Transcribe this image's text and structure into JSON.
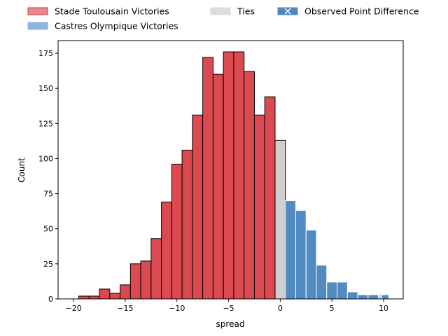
{
  "chart_data": {
    "type": "bar",
    "xlabel": "spread",
    "ylabel": "Count",
    "xlim": [
      -21.5,
      11.9
    ],
    "ylim": [
      0,
      184
    ],
    "xticks": [
      -20,
      -15,
      -10,
      -5,
      0,
      5,
      10
    ],
    "xtick_labels": [
      "−20",
      "−15",
      "−10",
      "−5",
      "0",
      "5",
      "10"
    ],
    "yticks": [
      0,
      25,
      50,
      75,
      100,
      125,
      150,
      175
    ],
    "ytick_labels": [
      "0",
      "25",
      "50",
      "75",
      "100",
      "125",
      "150",
      "175"
    ],
    "bin_width": 1,
    "legend": {
      "placement": "top, above plot, 3 columns",
      "entries": [
        {
          "label": "Stade Toulousain Victories",
          "color": "#e8888c",
          "edge": "#c43b45"
        },
        {
          "label": "Castres Olympique Victories",
          "color": "#8eb4dd",
          "edge": "#8eb4dd"
        },
        {
          "label": "Ties",
          "color": "#dcdcdc",
          "edge": "#dcdcdc"
        },
        {
          "label": "Observed Point Difference",
          "color": "#4f87c3",
          "edge": "#4f87c3",
          "marker": "x"
        }
      ]
    },
    "series": [
      {
        "name": "Stade Toulousain Victories",
        "color": "#dc4a51",
        "edge": "#000000",
        "x": [
          -19,
          -18,
          -17,
          -16,
          -15,
          -14,
          -13,
          -12,
          -11,
          -10,
          -9,
          -8,
          -7,
          -6,
          -5,
          -4,
          -3,
          -2,
          -1
        ],
        "values": [
          2,
          2,
          7,
          4,
          10,
          25,
          27,
          43,
          69,
          96,
          106,
          131,
          172,
          160,
          176,
          176,
          162,
          131,
          144
        ]
      },
      {
        "name": "Ties",
        "color": "#d0d0d0",
        "edge": "#000000",
        "x": [
          0
        ],
        "values": [
          113
        ]
      },
      {
        "name": "Castres Olympique Victories",
        "color": "#528bc2",
        "edge": "#ffffff",
        "x": [
          1,
          2,
          3,
          4,
          5,
          6,
          7,
          8,
          9,
          10
        ],
        "values": [
          70,
          63,
          49,
          24,
          12,
          12,
          5,
          3,
          3,
          3
        ]
      }
    ],
    "observed_point_difference": 9.7
  }
}
